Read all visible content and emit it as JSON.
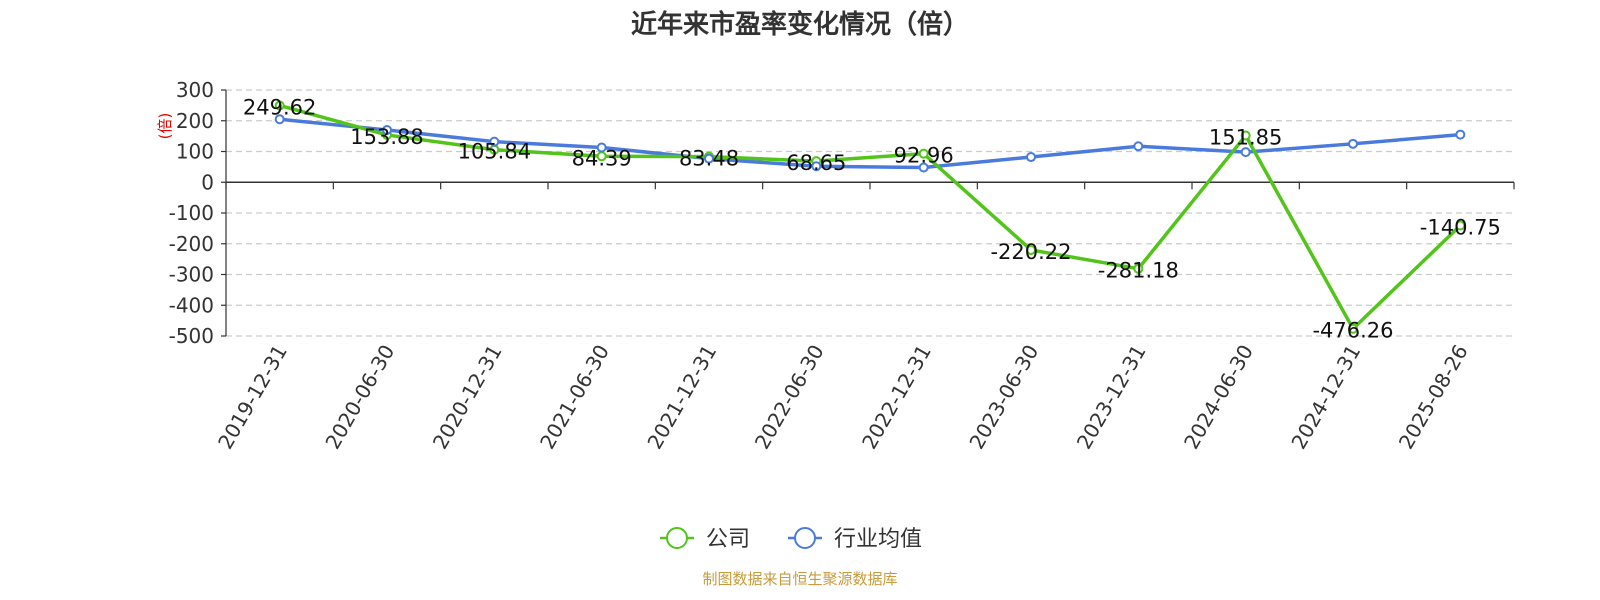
{
  "chart_data": {
    "type": "line",
    "title": "近年来市盈率变化情况（倍）",
    "ylabel": "(倍)",
    "xlabel": "",
    "ylim": [
      -500,
      300
    ],
    "yticks": [
      300,
      200,
      100,
      0,
      -100,
      -200,
      -300,
      -400,
      -500
    ],
    "categories": [
      "2019-12-31",
      "2020-06-30",
      "2020-12-31",
      "2021-06-30",
      "2021-12-31",
      "2022-06-30",
      "2022-12-31",
      "2023-06-30",
      "2023-12-31",
      "2024-06-30",
      "2024-12-31",
      "2025-08-26"
    ],
    "grid": true,
    "legend_position": "bottom",
    "series": [
      {
        "name": "公司",
        "color": "#52c41a",
        "values": [
          249.62,
          153.88,
          105.84,
          84.39,
          83.48,
          68.65,
          92.96,
          -220.22,
          -281.18,
          151.85,
          -476.26,
          -140.75
        ],
        "labels": [
          "249.62",
          "153.88",
          "105.84",
          "84.39",
          "83.48",
          "68.65",
          "92.96",
          "-220.22",
          "-281.18",
          "151.85",
          "-476.26",
          "-140.75"
        ]
      },
      {
        "name": "行业均值",
        "color": "#4a7bdc",
        "values": [
          205,
          170,
          132,
          113,
          77,
          52,
          48,
          82,
          117,
          98,
          125,
          155
        ]
      }
    ]
  },
  "footer": "制图数据来自恒生聚源数据库"
}
